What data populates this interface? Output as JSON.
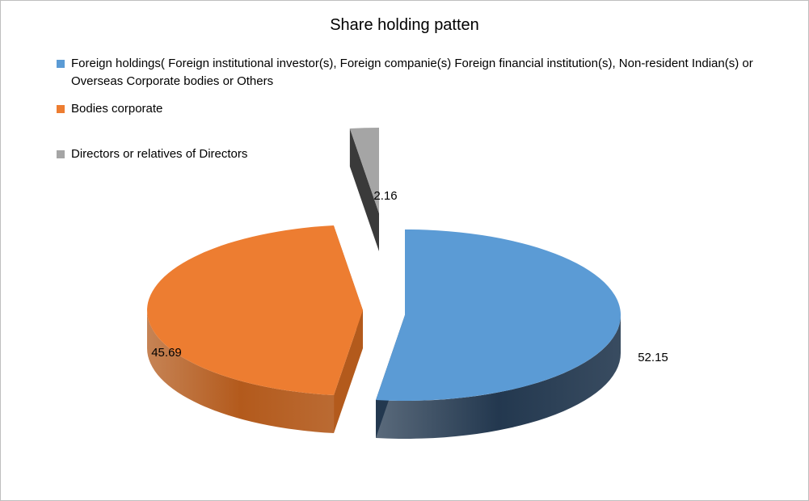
{
  "chart_data": {
    "type": "pie",
    "title": "Share holding patten",
    "legend_position": "top",
    "series": [
      {
        "name": "Foreign holdings( Foreign institutional investor(s), Foreign companie(s) Foreign financial institution(s),  Non-resident Indian(s) or Overseas Corporate bodies or Others",
        "value": 52.15,
        "label": "52.15",
        "color": "#5b9bd5",
        "side_color": "#23384f"
      },
      {
        "name": "Bodies corporate",
        "value": 45.69,
        "label": "45.69",
        "color": "#ed7d31",
        "side_color": "#b35a1c"
      },
      {
        "name": "Directors or relatives of Directors",
        "value": 2.16,
        "label": "2.16",
        "color": "#a5a5a5",
        "side_color": "#3a3a3a"
      }
    ]
  }
}
